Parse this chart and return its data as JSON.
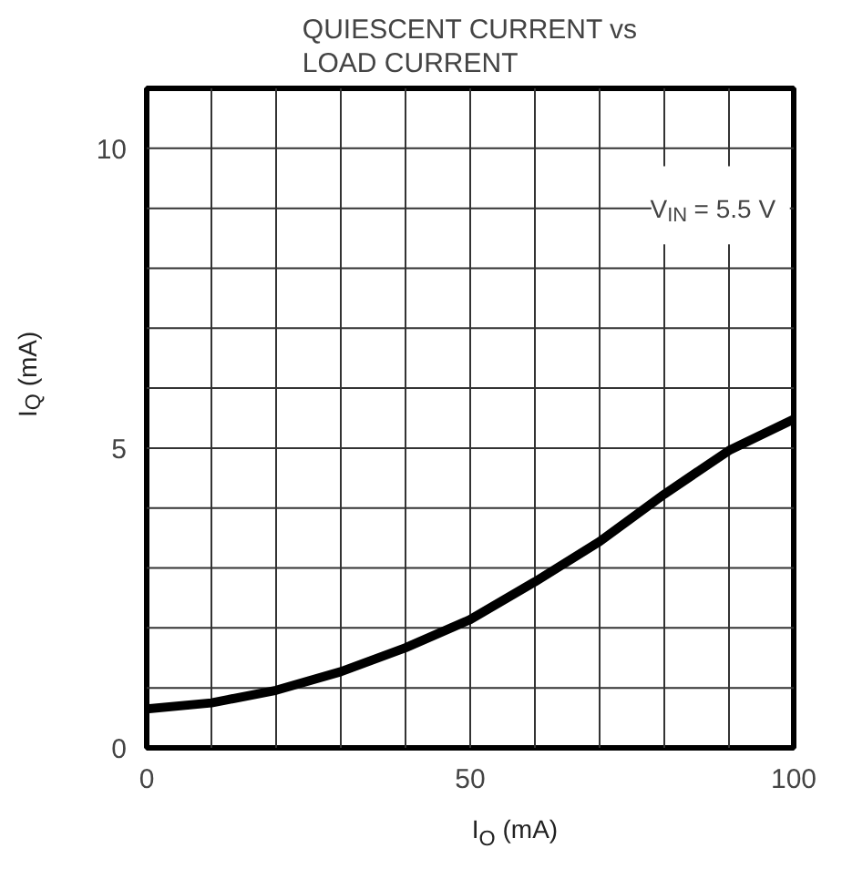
{
  "chart_data": {
    "type": "line",
    "title": "QUIESCENT CURRENT vs\nLOAD CURRENT",
    "xlabel": "I$_{O}$ (mA)",
    "ylabel": "I$_{Q}$ (mA)",
    "x": [
      0,
      10,
      20,
      30,
      40,
      50,
      60,
      70,
      80,
      90,
      100
    ],
    "series": [
      {
        "color": "#000000",
        "values": [
          0.65,
          0.75,
          0.96,
          1.27,
          1.67,
          2.14,
          2.77,
          3.44,
          4.23,
          4.96,
          5.48
        ]
      }
    ],
    "xlim": [
      0,
      100
    ],
    "ylim": [
      0,
      11
    ],
    "xticks": [
      0,
      50,
      100
    ],
    "yticks": [
      0,
      5,
      10
    ],
    "grid": true,
    "annotations": [
      "V$_{IN}$ = 5.5 V"
    ]
  }
}
